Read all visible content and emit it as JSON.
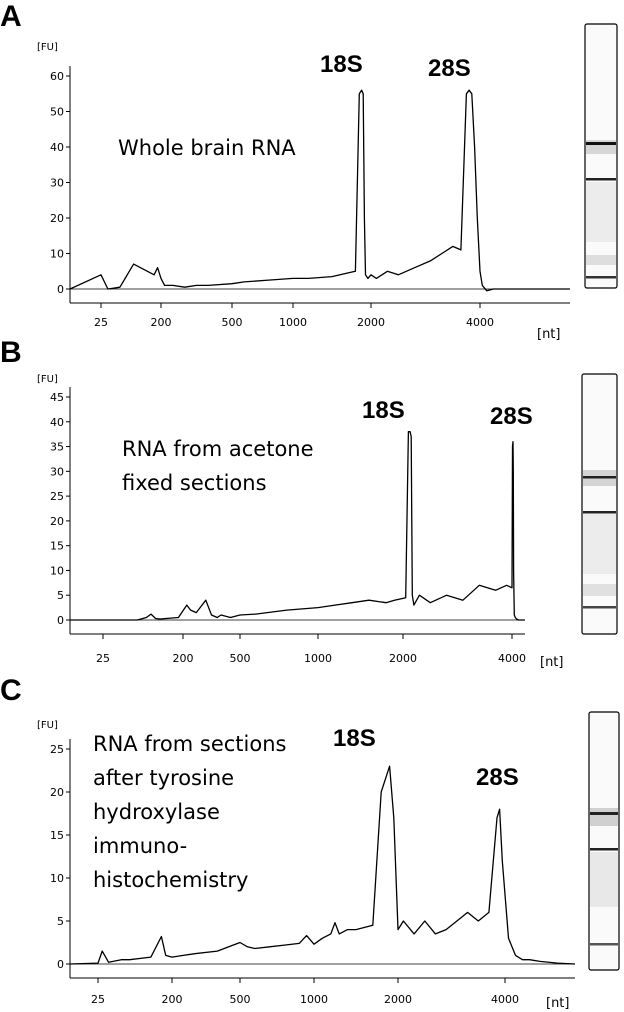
{
  "chart_data": [
    {
      "type": "line",
      "panel_label": "A",
      "annotation": [
        "Whole brain RNA"
      ],
      "y_unit": "[FU]",
      "x_unit": "[nt]",
      "x_ticks": [
        "25",
        "200",
        "500",
        "1000",
        "2000",
        "4000"
      ],
      "y_ticks": [
        0,
        10,
        20,
        30,
        40,
        50,
        60
      ],
      "ylim": [
        -3,
        64
      ],
      "peak_labels": [
        {
          "text": "18S",
          "x_nt": 1900
        },
        {
          "text": "28S",
          "x_nt": 3900
        }
      ],
      "series": [
        {
          "x": [
            0,
            25,
            45,
            60,
            80,
            120,
            180,
            190,
            200,
            215,
            250,
            300,
            350,
            400,
            500,
            600,
            800,
            1000,
            1200,
            1500,
            1700,
            1800,
            1850,
            1880,
            1900,
            1915,
            1930,
            1960,
            2000,
            2100,
            2300,
            2500,
            2800,
            3100,
            3300,
            3500,
            3650,
            3750,
            3800,
            3850,
            3900,
            3950,
            4000,
            4050,
            4150,
            4300,
            4500,
            5000,
            5500,
            6000
          ],
          "y": [
            0,
            4,
            0,
            0.2,
            0.5,
            7,
            4,
            6,
            3,
            1,
            1,
            0.5,
            1,
            1,
            1.5,
            2,
            2.5,
            3,
            3,
            3.5,
            4.5,
            5,
            55,
            56,
            55,
            20,
            4,
            3,
            4,
            3,
            5,
            4,
            6,
            8,
            10,
            12,
            11,
            55,
            56,
            55,
            40,
            20,
            5,
            1,
            -0.5,
            0,
            0,
            0,
            0,
            0
          ]
        }
      ]
    },
    {
      "type": "line",
      "panel_label": "B",
      "annotation": [
        "RNA from acetone",
        "fixed sections"
      ],
      "y_unit": "[FU]",
      "x_unit": "[nt]",
      "x_ticks": [
        "25",
        "200",
        "500",
        "1000",
        "2000",
        "4000"
      ],
      "y_ticks": [
        0,
        5,
        10,
        15,
        20,
        25,
        30,
        35,
        40,
        45
      ],
      "ylim": [
        -2,
        48
      ],
      "peak_labels": [
        {
          "text": "18S",
          "x_nt": 1950
        },
        {
          "text": "28S",
          "x_nt": 4200
        }
      ],
      "series": [
        {
          "x": [
            0,
            10,
            20,
            40,
            60,
            100,
            120,
            130,
            140,
            150,
            190,
            220,
            240,
            270,
            300,
            320,
            350,
            380,
            400,
            450,
            500,
            600,
            800,
            1000,
            1200,
            1400,
            1600,
            1800,
            1900,
            2050,
            2100,
            2130,
            2150,
            2170,
            2200,
            2300,
            2500,
            2800,
            3100,
            3400,
            3700,
            3900,
            4000,
            4080,
            4150,
            4200,
            4250,
            4350,
            4500,
            4700,
            5000,
            5500,
            6000
          ],
          "y": [
            0,
            0,
            0,
            0,
            0,
            0,
            0.5,
            1.2,
            0.3,
            0.2,
            0.5,
            3,
            2,
            1.5,
            3,
            4,
            1,
            0.5,
            1,
            0.5,
            1,
            1.2,
            2,
            2.5,
            3,
            3.5,
            4,
            3.5,
            4,
            4.5,
            38,
            38,
            37,
            5,
            3,
            5,
            3.5,
            5,
            4,
            7,
            6,
            7,
            6.5,
            35,
            36,
            30,
            10,
            1,
            0.5,
            0.2,
            0,
            0,
            0
          ]
        }
      ]
    },
    {
      "type": "line",
      "panel_label": "C",
      "annotation": [
        "RNA from sections",
        "after tyrosine",
        "hydroxylase",
        "immuno-",
        "histochemistry"
      ],
      "y_unit": "[FU]",
      "x_unit": "[nt]",
      "x_ticks": [
        "25",
        "200",
        "500",
        "1000",
        "2000",
        "4000"
      ],
      "y_ticks": [
        0,
        5,
        10,
        15,
        20,
        25
      ],
      "ylim": [
        -1,
        27
      ],
      "peak_labels": [
        {
          "text": "18S",
          "x_nt": 1600
        },
        {
          "text": "28S",
          "x_nt": 4200
        }
      ],
      "series": [
        {
          "x": [
            0,
            25,
            35,
            50,
            80,
            100,
            150,
            175,
            185,
            200,
            250,
            300,
            400,
            500,
            550,
            600,
            700,
            800,
            900,
            950,
            1000,
            1100,
            1200,
            1250,
            1300,
            1400,
            1500,
            1700,
            1800,
            1900,
            1950,
            2000,
            2100,
            2300,
            2500,
            2700,
            2900,
            3100,
            3300,
            3500,
            3700,
            3850,
            3900,
            3950,
            4100,
            4300,
            4500,
            4700,
            5000,
            5500,
            6000
          ],
          "y": [
            0,
            0.1,
            1.5,
            0.2,
            0.5,
            0.5,
            0.8,
            3.2,
            1,
            0.8,
            1,
            1.2,
            1.5,
            2.5,
            2,
            1.8,
            2,
            2.2,
            2.4,
            3.3,
            2.3,
            3,
            3.5,
            4.8,
            3.5,
            4,
            4,
            4.5,
            20,
            23,
            17,
            4,
            5,
            3.5,
            5,
            3.5,
            4,
            5,
            6,
            5,
            6,
            17,
            18,
            12,
            3,
            1,
            0.5,
            0.5,
            0.3,
            0.1,
            0
          ]
        }
      ]
    }
  ]
}
